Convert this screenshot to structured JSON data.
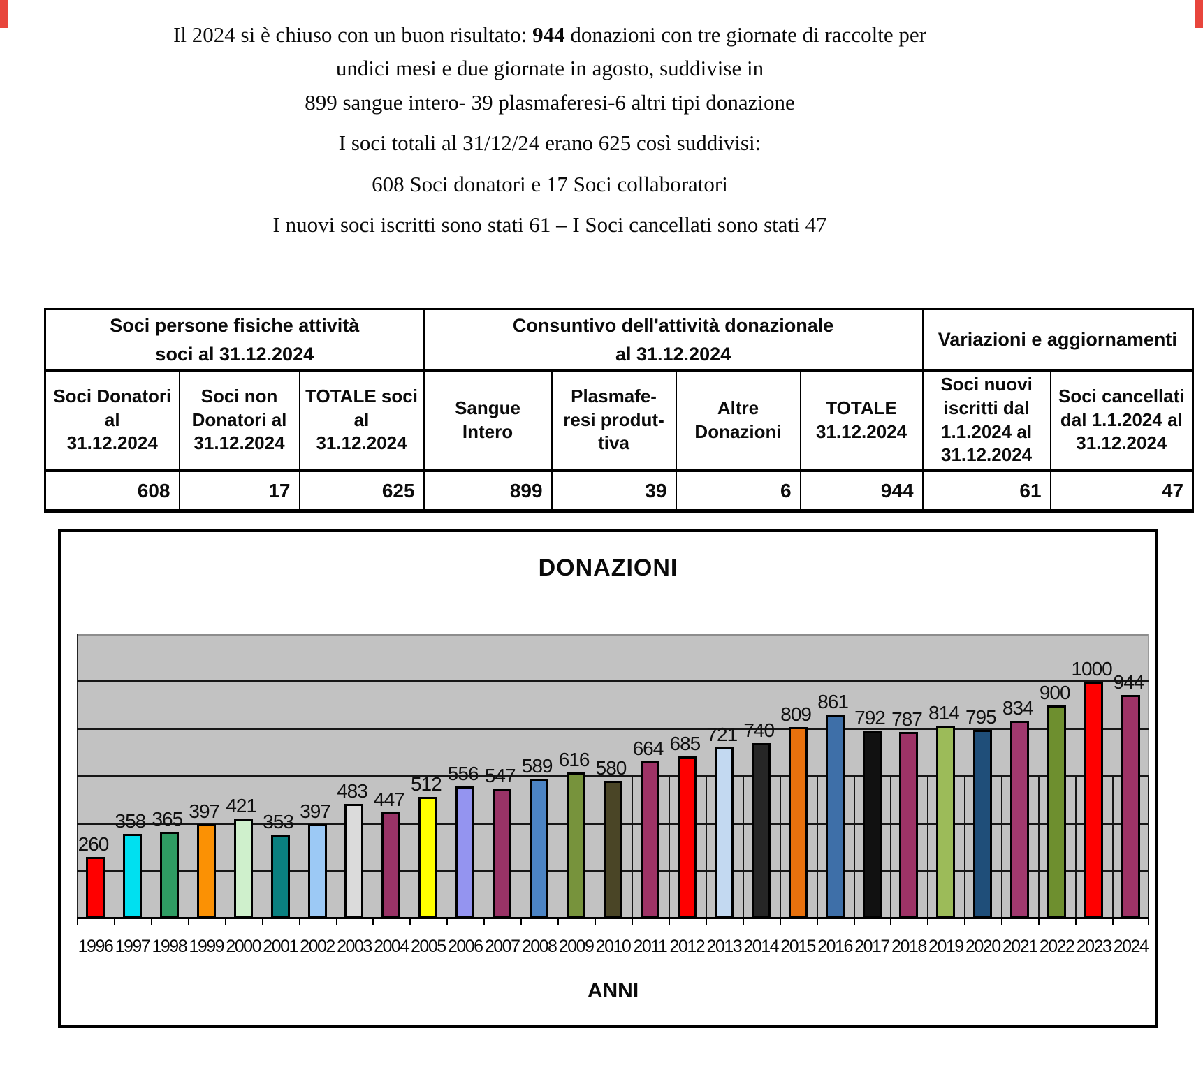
{
  "intro": {
    "line1_prefix": "Il 2024 si è chiuso con un buon risultato: ",
    "line1_bold": "944",
    "line1_suffix": " donazioni con tre giornate di raccolte per",
    "line2": "undici mesi e due giornate in agosto, suddivise in",
    "line3": "899 sangue intero- 39 plasmaferesi-6 altri tipi donazione",
    "line4": "I soci totali al 31/12/24 erano 625 così suddivisi:",
    "line5": "608 Soci donatori e 17 Soci collaboratori",
    "line6": "I nuovi soci iscritti sono stati 61 – I Soci cancellati sono stati 47"
  },
  "summary_table": {
    "group_headers": [
      {
        "lines": [
          "Soci persone fisiche attività",
          "soci al 31.12.2024"
        ],
        "span": 3
      },
      {
        "lines": [
          "Consuntivo dell'attività donazionale",
          "al 31.12.2024"
        ],
        "span": 4
      },
      {
        "lines": [
          "Variazioni e aggiornamenti"
        ],
        "span": 2
      }
    ],
    "columns": [
      {
        "lines": [
          "Soci Donatori",
          "al",
          "31.12.2024"
        ],
        "value": "608"
      },
      {
        "lines": [
          "Soci non",
          "Donatori al",
          "31.12.2024"
        ],
        "value": "17"
      },
      {
        "lines": [
          "TOTALE soci",
          "al",
          "31.12.2024"
        ],
        "value": "625"
      },
      {
        "lines": [
          "Sangue",
          "Intero"
        ],
        "value": "899"
      },
      {
        "lines": [
          "Plasmafe-",
          "resi produt-",
          "tiva"
        ],
        "value": "39"
      },
      {
        "lines": [
          "Altre",
          "Donazioni"
        ],
        "value": "6"
      },
      {
        "lines": [
          "TOTALE",
          "31.12.2024"
        ],
        "value": "944"
      },
      {
        "lines": [
          "Soci nuovi",
          "iscritti dal",
          "1.1.2024 al",
          "31.12.2024"
        ],
        "value": "61"
      },
      {
        "lines": [
          "Soci cancellati",
          "dal 1.1.2024 al",
          "31.12.2024"
        ],
        "value": "47"
      }
    ]
  },
  "chart_data": {
    "type": "bar",
    "title": "DONAZIONI",
    "xlabel": "ANNI",
    "ylabel": "",
    "ylim": [
      0,
      1200
    ],
    "gridline_step": 200,
    "grid": true,
    "legend_position": "none",
    "plot_background": "#c2c2c2",
    "vertical_grid_from_boundary": 15,
    "vertical_grid_top_value": 600,
    "categories": [
      "1996",
      "1997",
      "1998",
      "1999",
      "2000",
      "2001",
      "2002",
      "2003",
      "2004",
      "2005",
      "2006",
      "2007",
      "2008",
      "2009",
      "2010",
      "2011",
      "2012",
      "2013",
      "2014",
      "2015",
      "2016",
      "2017",
      "2018",
      "2019",
      "2020",
      "2021",
      "2022",
      "2023",
      "2024"
    ],
    "values": [
      260,
      358,
      365,
      397,
      421,
      353,
      397,
      483,
      447,
      512,
      556,
      547,
      589,
      616,
      580,
      664,
      685,
      721,
      740,
      809,
      861,
      792,
      787,
      814,
      795,
      834,
      900,
      1000,
      944
    ],
    "bar_colors": [
      "#FF0000",
      "#00E0F0",
      "#2F9C63",
      "#FB9104",
      "#CFF0CC",
      "#0A8080",
      "#9CC9F5",
      "#DBDBDB",
      "#993366",
      "#FFFF00",
      "#9494F0",
      "#993366",
      "#4C84C4",
      "#77933C",
      "#4A4526",
      "#9E3366",
      "#FF0000",
      "#C3D9F1",
      "#262626",
      "#E8710D",
      "#3E6FA8",
      "#111111",
      "#9E3366",
      "#9CBB59",
      "#1F4E79",
      "#A0396E",
      "#6E8F2F",
      "#FF0000",
      "#9E3366"
    ]
  }
}
